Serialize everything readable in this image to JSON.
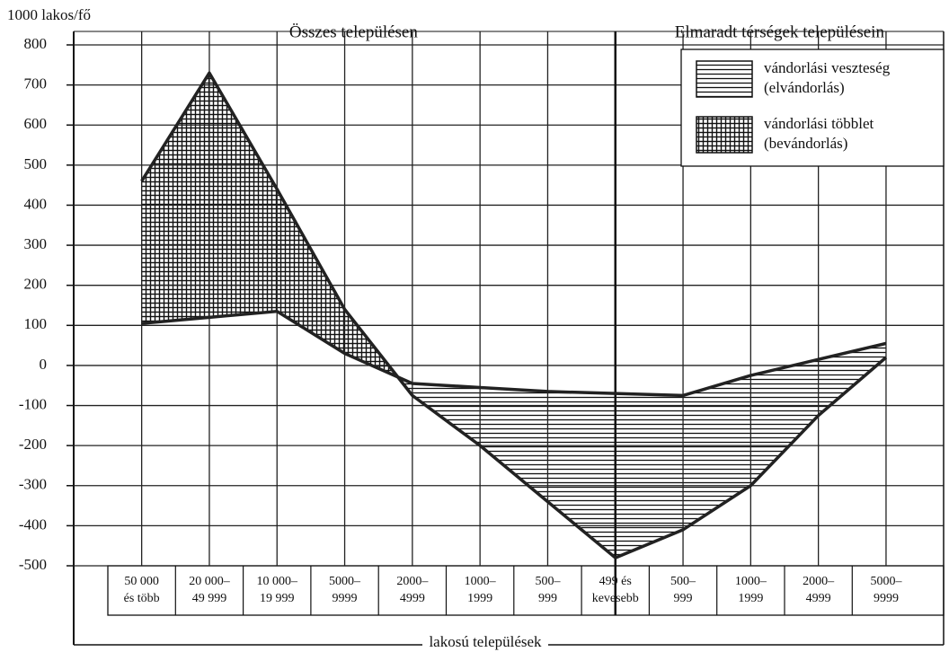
{
  "chart_data": {
    "type": "line",
    "ylabel": "1000 lakos/fő",
    "xlabel": "lakosú települések",
    "section_titles": [
      "Összes településen",
      "Elmaradt térségek településein"
    ],
    "divider_index": 7,
    "categories": [
      [
        "50 000",
        "és több"
      ],
      [
        "20 000–",
        "49 999"
      ],
      [
        "10 000–",
        "19 999"
      ],
      [
        "5000–",
        "9999"
      ],
      [
        "2000–",
        "4999"
      ],
      [
        "1000–",
        "1999"
      ],
      [
        "500–",
        "999"
      ],
      [
        "499  és",
        "kevesebb"
      ],
      [
        "500–",
        "999"
      ],
      [
        "1000–",
        "1999"
      ],
      [
        "2000–",
        "4999"
      ],
      [
        "5000–",
        "9999"
      ]
    ],
    "series": [
      {
        "color": "#222",
        "values": [
          460,
          730,
          440,
          140,
          -75,
          -200,
          -340,
          -480,
          -410,
          -300,
          -125,
          20
        ]
      },
      {
        "color": "#222",
        "values": [
          105,
          120,
          135,
          30,
          -45,
          -55,
          -65,
          -70,
          -75,
          -25,
          15,
          55
        ]
      }
    ],
    "legend": [
      {
        "label": [
          "vándorlási veszteség",
          "(elvándorlás)"
        ],
        "pattern": "horizontal"
      },
      {
        "label": [
          "vándorlási többlet",
          "(bevándorlás)"
        ],
        "pattern": "crosshatch"
      }
    ],
    "ylim": [
      -500,
      800
    ],
    "yticks": [
      -500,
      -400,
      -300,
      -200,
      -100,
      0,
      100,
      200,
      300,
      400,
      500,
      600,
      700,
      800
    ],
    "grid": true
  }
}
